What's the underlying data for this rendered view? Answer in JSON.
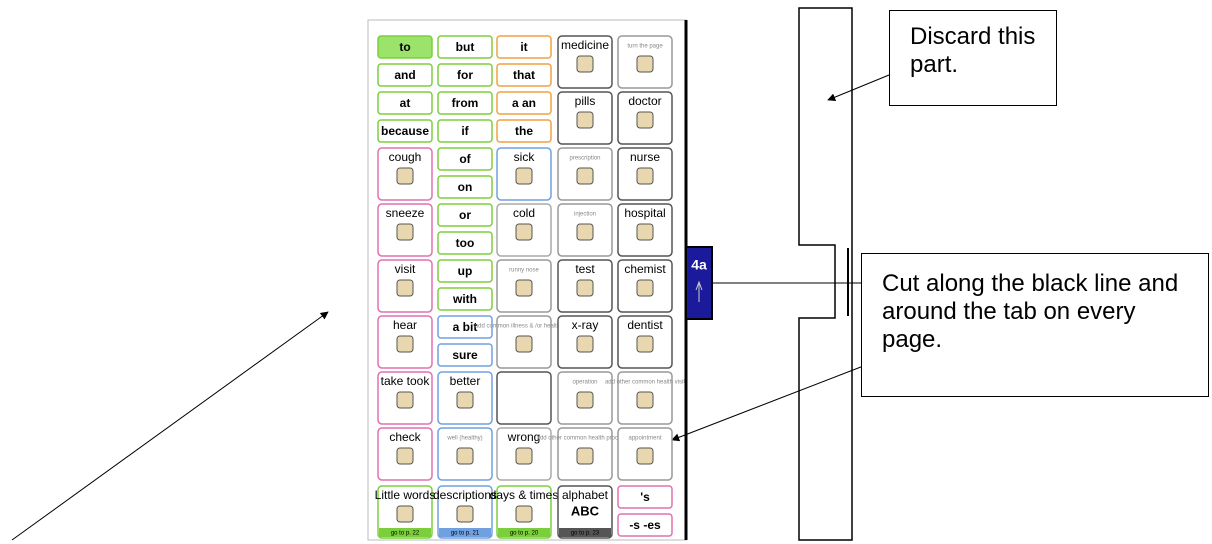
{
  "board": {
    "tab": "4a",
    "rows": [
      [
        {
          "top": "to",
          "bottom": "and",
          "color": "#7ccf3c"
        },
        {
          "top": "but",
          "bottom": "for",
          "color": "#7ccf3c"
        },
        {
          "top": "it",
          "bottom": "that",
          "color": "#f0a040"
        },
        {
          "label": "medicine",
          "color": "#555"
        },
        {
          "label": "turn the page",
          "color": "#999",
          "small": true
        }
      ],
      [
        {
          "top": "at",
          "bottom": "because",
          "color": "#7ccf3c"
        },
        {
          "top": "from",
          "bottom": "if",
          "color": "#7ccf3c"
        },
        {
          "top": "a an",
          "bottom": "the",
          "color": "#f0a040"
        },
        {
          "label": "pills",
          "color": "#555"
        },
        {
          "label": "doctor",
          "color": "#555"
        }
      ],
      [
        {
          "label": "cough",
          "color": "#e070b0"
        },
        {
          "top": "of",
          "bottom": "on",
          "color": "#7ccf3c"
        },
        {
          "label": "sick",
          "color": "#70a0e0"
        },
        {
          "label": "prescription",
          "color": "#999",
          "small": true
        },
        {
          "label": "nurse",
          "color": "#555"
        }
      ],
      [
        {
          "label": "sneeze",
          "color": "#e070b0"
        },
        {
          "top": "or",
          "bottom": "too",
          "color": "#7ccf3c"
        },
        {
          "label": "cold",
          "color": "#aaa"
        },
        {
          "label": "injection",
          "color": "#999",
          "small": true
        },
        {
          "label": "hospital",
          "color": "#555"
        }
      ],
      [
        {
          "label": "visit",
          "color": "#e070b0"
        },
        {
          "top": "up",
          "bottom": "with",
          "color": "#7ccf3c"
        },
        {
          "label": "runny nose",
          "color": "#999",
          "small": true
        },
        {
          "label": "test",
          "color": "#555"
        },
        {
          "label": "chemist",
          "color": "#555"
        }
      ],
      [
        {
          "label": "hear",
          "color": "#e070b0"
        },
        {
          "top": "a bit",
          "bottom": "sure",
          "color": "#70a0e0"
        },
        {
          "label": "add common illness & /or health idea",
          "color": "#999",
          "small": true
        },
        {
          "label": "x-ray",
          "color": "#555"
        },
        {
          "label": "dentist",
          "color": "#555"
        }
      ],
      [
        {
          "label": "take took",
          "color": "#e070b0"
        },
        {
          "label": "better",
          "color": "#70a0e0"
        },
        {
          "color": "#555"
        },
        {
          "label": "operation",
          "color": "#999",
          "small": true
        },
        {
          "label": "add other common health visit",
          "color": "#999",
          "small": true
        }
      ],
      [
        {
          "label": "check",
          "color": "#e070b0"
        },
        {
          "label": "well (healthy)",
          "color": "#70a0e0",
          "small": true
        },
        {
          "label": "wrong",
          "color": "#aaa"
        },
        {
          "label": "add other common health procedure",
          "color": "#999",
          "small": true
        },
        {
          "label": "appointment",
          "color": "#999",
          "small": true
        }
      ]
    ],
    "nav": [
      {
        "label": "Little words",
        "link": "go to p. 22",
        "color": "#7ccf3c"
      },
      {
        "label": "descriptions",
        "link": "go to p. 21",
        "color": "#70a0e0"
      },
      {
        "label": "days & times",
        "link": "go to p. 20",
        "color": "#7ccf3c"
      },
      {
        "label": "alphabet",
        "extra": "ABC",
        "link": "go to p. 23",
        "color": "#555"
      },
      {
        "top": "'s",
        "bottom": "-s -es",
        "color": "#e070b0"
      }
    ]
  },
  "callouts": {
    "discard": "Discard this part.",
    "cut": "Cut along the black line and around the tab on every page."
  }
}
